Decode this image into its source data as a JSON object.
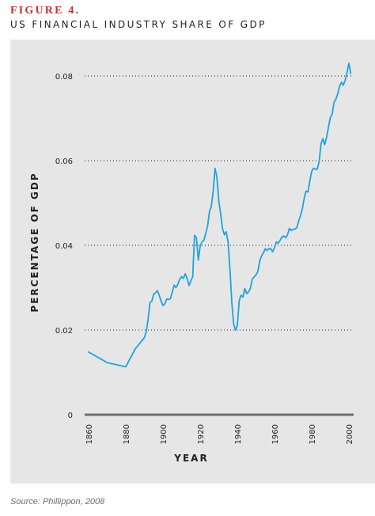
{
  "figure": {
    "label": "FIGURE 4.",
    "title": "US FINANCIAL INDUSTRY SHARE OF GDP",
    "source": "Source: Phillippon, 2008"
  },
  "colors": {
    "label": "#c8312b",
    "panel": "#e6e6e7",
    "line": "#1fa3da",
    "baseline": "#6d6e71",
    "grid": "#231f20",
    "text": "#231f20"
  },
  "chart_data": {
    "type": "line",
    "xlabel": "YEAR",
    "ylabel": "PERCENTAGE OF GDP",
    "xlim": [
      1860,
      2000
    ],
    "ylim": [
      0,
      0.08
    ],
    "grid": "dotted horizontal",
    "y_ticks": [
      {
        "value": 0,
        "label": "0"
      },
      {
        "value": 0.02,
        "label": "0.02"
      },
      {
        "value": 0.04,
        "label": "0.04"
      },
      {
        "value": 0.06,
        "label": "0.06"
      },
      {
        "value": 0.08,
        "label": "0.08"
      }
    ],
    "x_ticks": [
      {
        "value": 1860,
        "label": "1860"
      },
      {
        "value": 1880,
        "label": "1880"
      },
      {
        "value": 1900,
        "label": "1900"
      },
      {
        "value": 1920,
        "label": "1920"
      },
      {
        "value": 1940,
        "label": "1940"
      },
      {
        "value": 1960,
        "label": "1960"
      },
      {
        "value": 1980,
        "label": "1980"
      },
      {
        "value": 2000,
        "label": "2000"
      }
    ],
    "series": [
      {
        "x": [
          1860,
          1870,
          1880,
          1885,
          1890,
          1891,
          1892,
          1893,
          1894,
          1895,
          1896,
          1897,
          1898,
          1899,
          1900,
          1901,
          1902,
          1903,
          1904,
          1905,
          1906,
          1907,
          1908,
          1909,
          1910,
          1911,
          1912,
          1913,
          1914,
          1915,
          1916,
          1917,
          1918,
          1919,
          1920,
          1921,
          1922,
          1923,
          1924,
          1925,
          1926,
          1927,
          1928,
          1929,
          1930,
          1931,
          1932,
          1933,
          1934,
          1935,
          1936,
          1937,
          1938,
          1939,
          1940,
          1941,
          1942,
          1943,
          1944,
          1945,
          1946,
          1947,
          1948,
          1949,
          1950,
          1951,
          1952,
          1953,
          1954,
          1955,
          1956,
          1957,
          1958,
          1959,
          1960,
          1961,
          1962,
          1963,
          1964,
          1965,
          1966,
          1967,
          1968,
          1969,
          1970,
          1971,
          1972,
          1973,
          1974,
          1975,
          1976,
          1977,
          1978,
          1979,
          1980,
          1981,
          1982,
          1983,
          1984,
          1985,
          1986,
          1987,
          1988,
          1989,
          1990,
          1991,
          1992,
          1993,
          1994,
          1995,
          1996,
          1997,
          1998,
          1999,
          2000,
          2001
        ],
        "y": [
          0.0148,
          0.0123,
          0.0113,
          0.0155,
          0.0182,
          0.0196,
          0.0225,
          0.0265,
          0.0268,
          0.0285,
          0.0288,
          0.0293,
          0.0282,
          0.0268,
          0.0258,
          0.0262,
          0.0273,
          0.0272,
          0.0274,
          0.029,
          0.0306,
          0.03,
          0.0308,
          0.032,
          0.0326,
          0.0322,
          0.0333,
          0.0322,
          0.0305,
          0.0316,
          0.0326,
          0.0424,
          0.0418,
          0.0365,
          0.0398,
          0.0408,
          0.0412,
          0.0428,
          0.0446,
          0.048,
          0.0492,
          0.0528,
          0.0582,
          0.0562,
          0.0506,
          0.0475,
          0.044,
          0.0425,
          0.0432,
          0.0408,
          0.0345,
          0.0265,
          0.0215,
          0.02,
          0.021,
          0.027,
          0.0282,
          0.0278,
          0.0298,
          0.0286,
          0.029,
          0.0298,
          0.032,
          0.0325,
          0.033,
          0.0338,
          0.0362,
          0.0375,
          0.0382,
          0.0392,
          0.0388,
          0.0392,
          0.0392,
          0.0385,
          0.0395,
          0.0408,
          0.0405,
          0.0412,
          0.042,
          0.0422,
          0.0418,
          0.0425,
          0.044,
          0.0435,
          0.0438,
          0.0438,
          0.0442,
          0.0458,
          0.047,
          0.0488,
          0.0512,
          0.0528,
          0.0526,
          0.0552,
          0.0575,
          0.0582,
          0.058,
          0.058,
          0.0598,
          0.064,
          0.0652,
          0.0638,
          0.0655,
          0.0678,
          0.0702,
          0.071,
          0.0738,
          0.0745,
          0.0758,
          0.0776,
          0.0785,
          0.0778,
          0.079,
          0.0808,
          0.083,
          0.0806
        ]
      }
    ]
  }
}
